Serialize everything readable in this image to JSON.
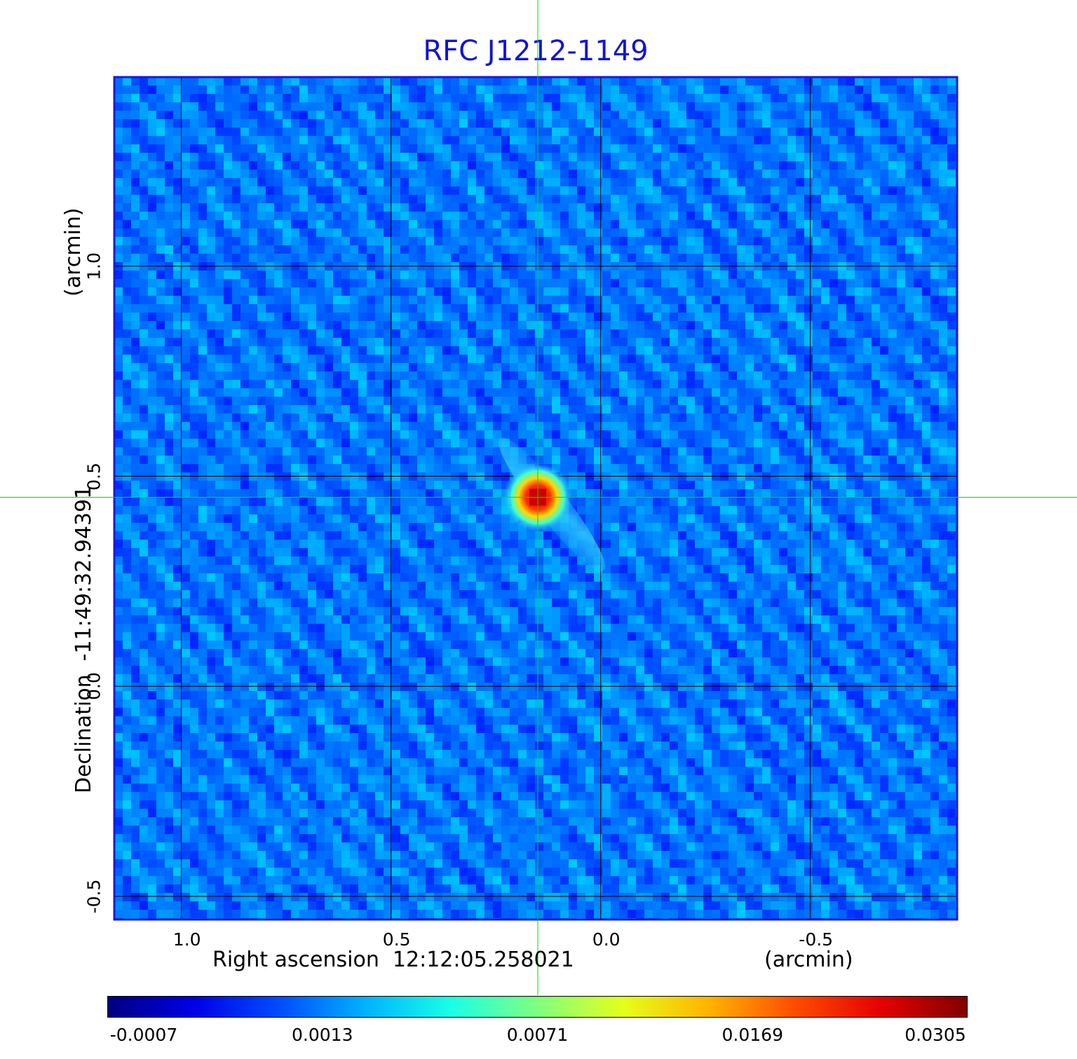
{
  "chart_data": {
    "type": "heatmap",
    "title": "RFC J1212-1149",
    "xlabel": "Right ascension  12:12:05.258021",
    "x_unit": "(arcmin)",
    "ylabel": "Declination  -11:49:32.94391",
    "y_unit": "(arcmin)",
    "xlim": [
      1.16,
      -0.85
    ],
    "ylim": [
      -0.555,
      1.45
    ],
    "x_ticks": [
      1.0,
      0.5,
      0.0,
      -0.5
    ],
    "x_tick_labels": [
      "1.0",
      "0.5",
      "0.0",
      "-0.5"
    ],
    "y_ticks": [
      1.0,
      0.5,
      0.0,
      -0.5
    ],
    "y_tick_labels": [
      "1.0",
      "0.5",
      "0.0",
      "-0.5"
    ],
    "grid": true,
    "crosshair": {
      "x": 0.15,
      "y": 0.45,
      "color": "#00dd00"
    },
    "source_peak": {
      "x": 0.15,
      "y": 0.45,
      "value": 0.0305
    },
    "colorbar": {
      "colormap": "jet",
      "tick_labels": [
        "-0.0007",
        "0.0013",
        "0.0071",
        "0.0169",
        "0.0305"
      ],
      "min": -0.0007,
      "max": 0.0305
    }
  }
}
